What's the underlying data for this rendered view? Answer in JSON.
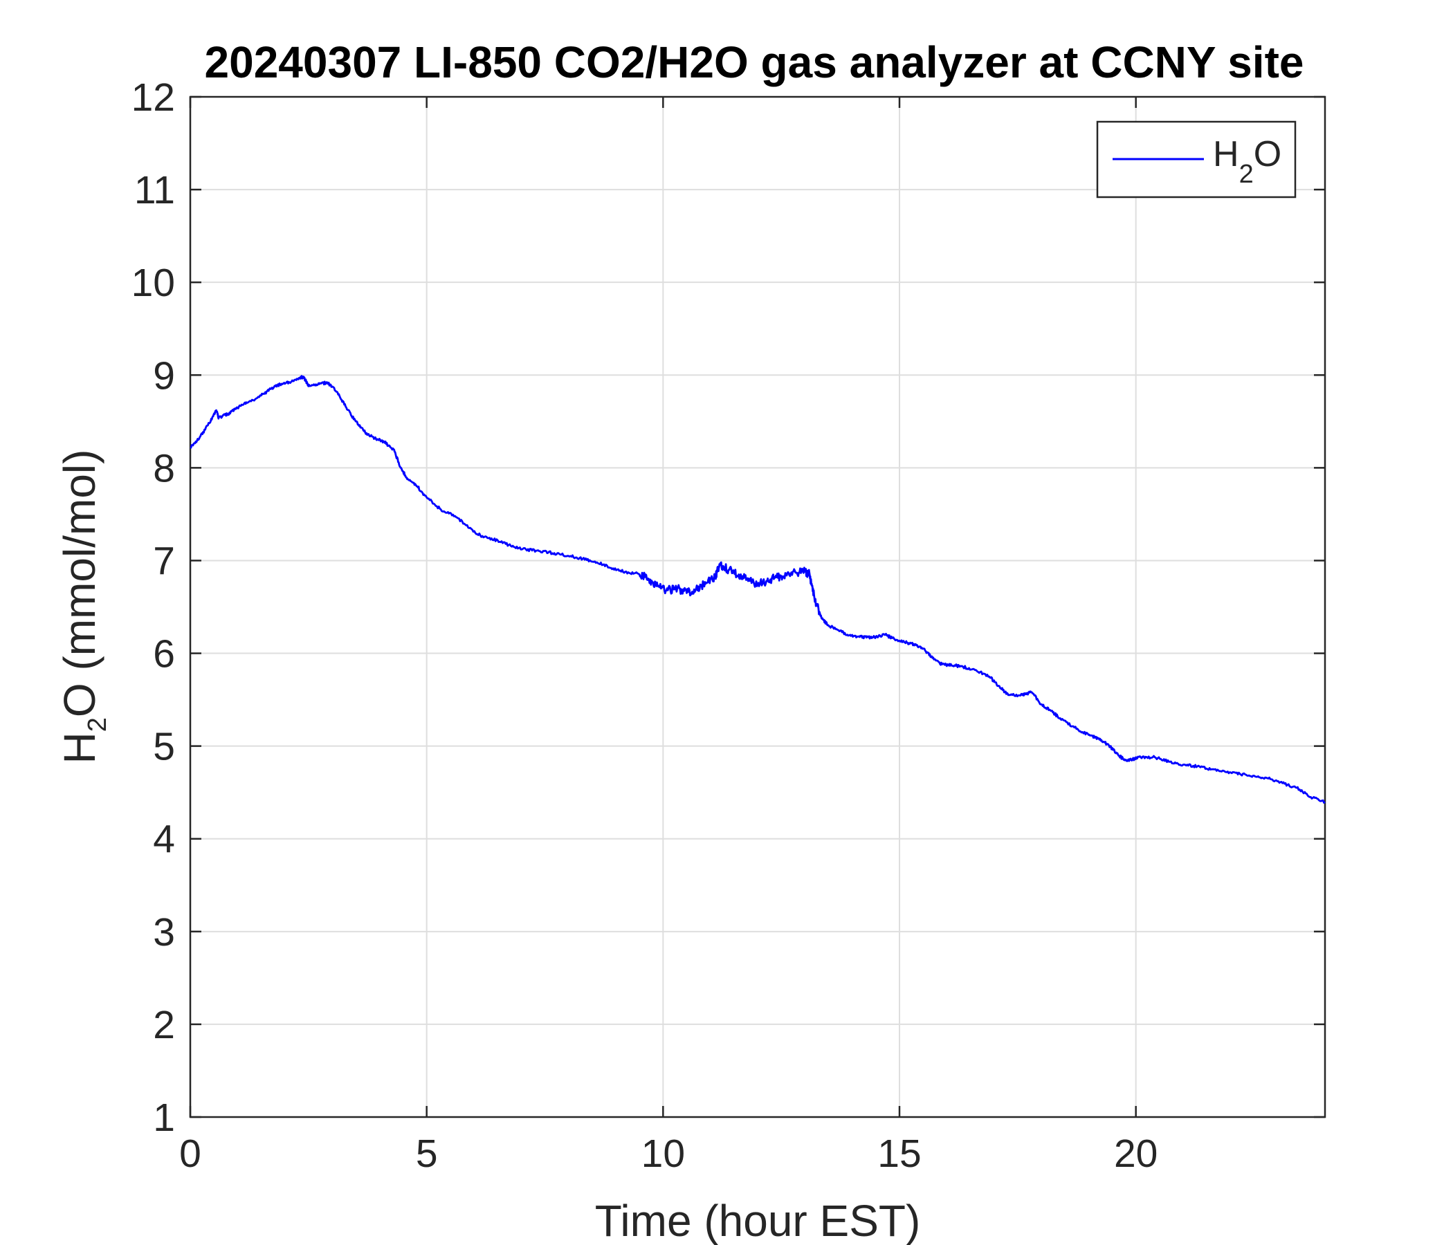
{
  "chart_data": {
    "type": "line",
    "title": "20240307 LI-850 CO2/H2O gas analyzer at CCNY site",
    "xlabel": "Time (hour EST)",
    "ylabel": {
      "main": "H",
      "sub": "2",
      "rest": "O (mmol/mol)"
    },
    "xlim": [
      0,
      24
    ],
    "ylim": [
      1,
      12
    ],
    "xticks": [
      0,
      5,
      10,
      15,
      20
    ],
    "yticks": [
      1,
      2,
      3,
      4,
      5,
      6,
      7,
      8,
      9,
      10,
      11,
      12
    ],
    "grid": true,
    "legend_position": "top-right",
    "series": [
      {
        "name": {
          "main": "H",
          "sub": "2",
          "rest": "O"
        },
        "color": "#0000ff",
        "x": [
          0,
          0.2,
          0.4,
          0.55,
          0.6,
          0.8,
          1.0,
          1.2,
          1.5,
          1.7,
          1.9,
          2.1,
          2.3,
          2.4,
          2.5,
          2.7,
          2.9,
          3.1,
          3.3,
          3.5,
          3.7,
          3.9,
          4.1,
          4.3,
          4.45,
          4.6,
          4.8,
          5.0,
          5.3,
          5.6,
          5.9,
          6.2,
          6.5,
          6.8,
          7.1,
          7.4,
          7.7,
          8.0,
          8.3,
          8.6,
          8.9,
          9.2,
          9.5,
          9.7,
          9.9,
          10.1,
          10.3,
          10.5,
          10.7,
          10.9,
          11.1,
          11.2,
          11.4,
          11.6,
          11.8,
          12.0,
          12.2,
          12.4,
          12.6,
          12.8,
          13.0,
          13.1,
          13.2,
          13.35,
          13.5,
          13.7,
          13.9,
          14.1,
          14.3,
          14.5,
          14.7,
          14.9,
          15.1,
          15.3,
          15.5,
          15.7,
          15.9,
          16.1,
          16.3,
          16.6,
          16.9,
          17.1,
          17.3,
          17.6,
          17.8,
          18.0,
          18.2,
          18.4,
          18.7,
          19.0,
          19.2,
          19.4,
          19.6,
          19.75,
          19.9,
          20.1,
          20.4,
          20.7,
          21.0,
          21.3,
          21.6,
          21.9,
          22.2,
          22.5,
          22.8,
          23.1,
          23.4,
          23.7,
          24.0
        ],
        "y": [
          8.22,
          8.33,
          8.48,
          8.62,
          8.54,
          8.58,
          8.65,
          8.7,
          8.78,
          8.85,
          8.9,
          8.92,
          8.97,
          8.98,
          8.88,
          8.9,
          8.92,
          8.82,
          8.65,
          8.5,
          8.38,
          8.32,
          8.28,
          8.2,
          8.0,
          7.88,
          7.8,
          7.68,
          7.55,
          7.48,
          7.35,
          7.25,
          7.22,
          7.15,
          7.12,
          7.1,
          7.08,
          7.05,
          7.02,
          6.98,
          6.92,
          6.88,
          6.85,
          6.8,
          6.72,
          6.68,
          6.7,
          6.65,
          6.7,
          6.75,
          6.82,
          6.95,
          6.9,
          6.85,
          6.78,
          6.75,
          6.78,
          6.82,
          6.85,
          6.87,
          6.88,
          6.85,
          6.6,
          6.38,
          6.3,
          6.25,
          6.2,
          6.18,
          6.17,
          6.18,
          6.2,
          6.15,
          6.12,
          6.1,
          6.05,
          5.95,
          5.88,
          5.87,
          5.86,
          5.82,
          5.75,
          5.65,
          5.55,
          5.55,
          5.58,
          5.45,
          5.38,
          5.3,
          5.2,
          5.12,
          5.08,
          5.02,
          4.92,
          4.85,
          4.85,
          4.88,
          4.88,
          4.83,
          4.8,
          4.78,
          4.75,
          4.72,
          4.7,
          4.68,
          4.65,
          4.6,
          4.55,
          4.45,
          4.4
        ]
      }
    ]
  }
}
